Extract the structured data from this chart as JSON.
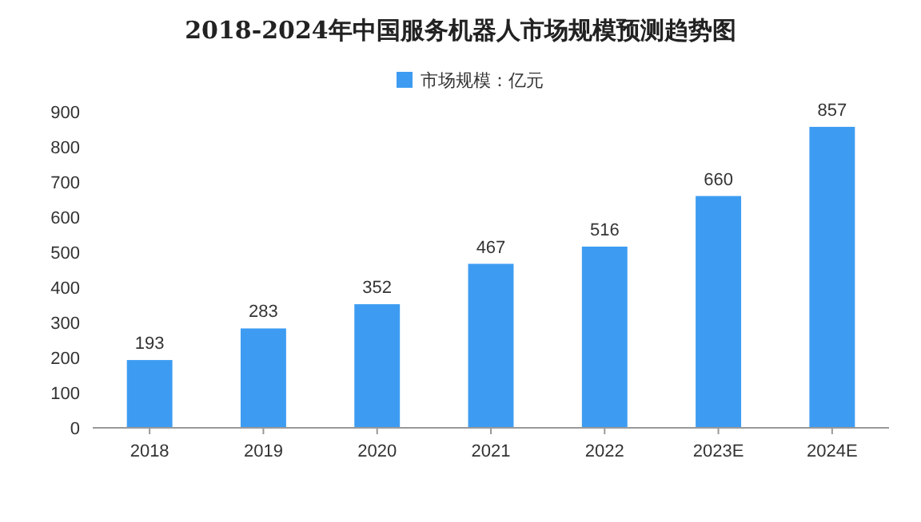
{
  "chart_data": {
    "type": "bar",
    "title": "2018-2024年中国服务机器人市场规模预测趋势图",
    "categories": [
      "2018",
      "2019",
      "2020",
      "2021",
      "2022",
      "2023E",
      "2024E"
    ],
    "series": [
      {
        "name": "市场规模：亿元",
        "color": "#3d9cf2",
        "values": [
          193,
          283,
          352,
          467,
          516,
          660,
          857
        ]
      }
    ],
    "ylim": [
      0,
      900
    ],
    "yticks": [
      0,
      100,
      200,
      300,
      400,
      500,
      600,
      700,
      800,
      900
    ],
    "data_labels": true,
    "legend": "top",
    "grid": false
  }
}
